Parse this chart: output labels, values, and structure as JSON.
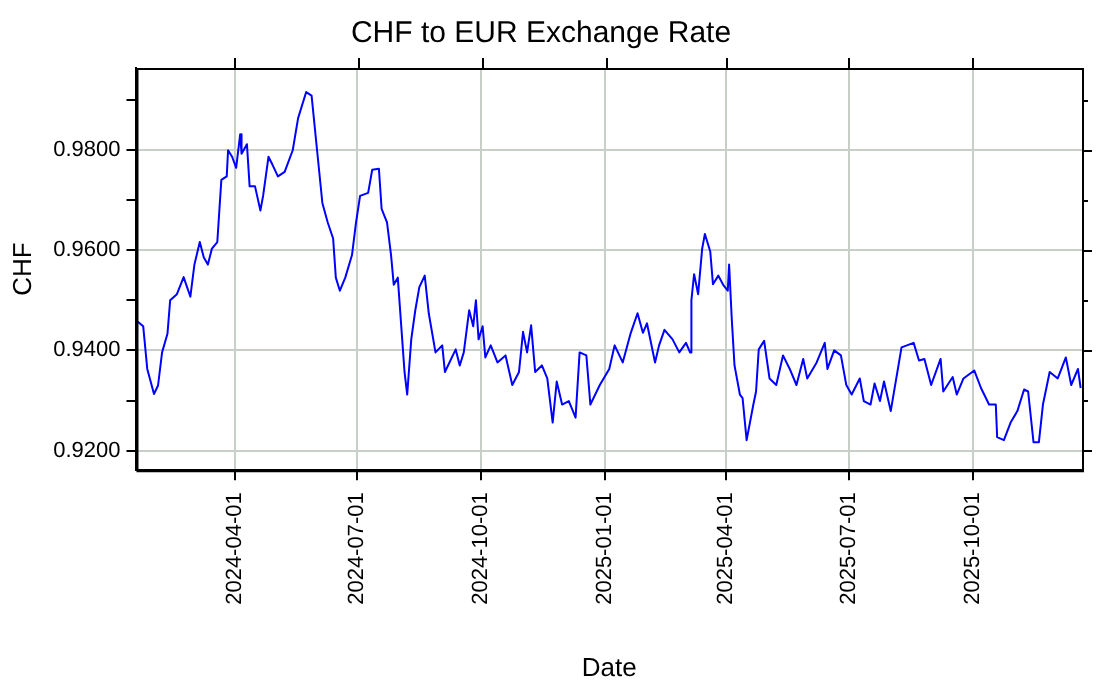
{
  "chart_data": {
    "type": "line",
    "title": "CHF to EUR Exchange Rate",
    "xlabel": "Date",
    "ylabel": "CHF",
    "x": [
      "2024-01-20",
      "2024-01-24",
      "2024-01-27",
      "2024-02-01",
      "2024-02-04",
      "2024-02-07",
      "2024-02-11",
      "2024-02-13",
      "2024-02-18",
      "2024-02-23",
      "2024-02-28",
      "2024-03-02",
      "2024-03-06",
      "2024-03-09",
      "2024-03-12",
      "2024-03-15",
      "2024-03-19",
      "2024-03-22",
      "2024-03-26",
      "2024-03-27",
      "2024-03-30",
      "2024-04-02",
      "2024-04-05",
      "2024-04-06",
      "2024-04-10",
      "2024-04-12",
      "2024-04-16",
      "2024-04-20",
      "2024-04-22",
      "2024-04-26",
      "2024-04-29",
      "2024-05-03",
      "2024-05-08",
      "2024-05-14",
      "2024-05-18",
      "2024-05-24",
      "2024-05-28",
      "2024-06-01",
      "2024-06-05",
      "2024-06-09",
      "2024-06-13",
      "2024-06-15",
      "2024-06-18",
      "2024-06-22",
      "2024-06-27",
      "2024-06-30",
      "2024-07-03",
      "2024-07-09",
      "2024-07-12",
      "2024-07-17",
      "2024-07-19",
      "2024-07-23",
      "2024-07-26",
      "2024-07-28",
      "2024-07-31",
      "2024-08-05",
      "2024-08-07",
      "2024-08-10",
      "2024-08-13",
      "2024-08-16",
      "2024-08-20",
      "2024-08-23",
      "2024-08-28",
      "2024-09-02",
      "2024-09-04",
      "2024-09-12",
      "2024-09-15",
      "2024-09-18",
      "2024-09-22",
      "2024-09-25",
      "2024-09-27",
      "2024-09-29",
      "2024-10-02",
      "2024-10-04",
      "2024-10-08",
      "2024-10-13",
      "2024-10-19",
      "2024-10-24",
      "2024-10-29",
      "2024-11-01",
      "2024-11-04",
      "2024-11-07",
      "2024-11-10",
      "2024-11-15",
      "2024-11-19",
      "2024-11-23",
      "2024-11-26",
      "2024-11-30",
      "2024-12-05",
      "2024-12-10",
      "2024-12-13",
      "2024-12-18",
      "2024-12-21",
      "2024-12-28",
      "2025-01-04",
      "2025-01-08",
      "2025-01-14",
      "2025-01-20",
      "2025-01-25",
      "2025-01-29",
      "2025-02-01",
      "2025-02-07",
      "2025-02-10",
      "2025-02-14",
      "2025-02-20",
      "2025-02-25",
      "2025-03-02",
      "2025-03-05",
      "2025-03-06",
      "2025-03-08",
      "2025-03-11",
      "2025-03-14",
      "2025-03-16",
      "2025-03-20",
      "2025-03-22",
      "2025-03-26",
      "2025-03-30",
      "2025-04-02",
      "2025-04-03",
      "2025-04-05",
      "2025-04-07",
      "2025-04-11",
      "2025-04-13",
      "2025-04-16",
      "2025-04-21",
      "2025-04-23",
      "2025-04-25",
      "2025-04-29",
      "2025-05-03",
      "2025-05-08",
      "2025-05-13",
      "2025-05-18",
      "2025-05-23",
      "2025-05-28",
      "2025-05-31",
      "2025-06-07",
      "2025-06-13",
      "2025-06-15",
      "2025-06-20",
      "2025-06-25",
      "2025-06-29",
      "2025-07-03",
      "2025-07-09",
      "2025-07-12",
      "2025-07-17",
      "2025-07-20",
      "2025-07-24",
      "2025-07-27",
      "2025-08-01",
      "2025-08-09",
      "2025-08-18",
      "2025-08-22",
      "2025-08-26",
      "2025-08-31",
      "2025-09-07",
      "2025-09-09",
      "2025-09-16",
      "2025-09-19",
      "2025-09-24",
      "2025-10-02",
      "2025-10-07",
      "2025-10-13",
      "2025-10-18",
      "2025-10-19",
      "2025-10-24",
      "2025-10-29",
      "2025-11-03",
      "2025-11-08",
      "2025-11-11",
      "2025-11-15",
      "2025-11-19",
      "2025-11-22",
      "2025-11-27",
      "2025-12-03",
      "2025-12-09",
      "2025-12-13",
      "2025-12-18",
      "2025-12-20"
    ],
    "series": [
      {
        "color": "#0000ff",
        "values": [
          0.9457,
          0.9448,
          0.9363,
          0.9313,
          0.933,
          0.9396,
          0.9433,
          0.95,
          0.9512,
          0.9546,
          0.9507,
          0.9571,
          0.9616,
          0.9585,
          0.9571,
          0.9603,
          0.9616,
          0.974,
          0.9747,
          0.9799,
          0.9786,
          0.9764,
          0.9831,
          0.9792,
          0.9811,
          0.9727,
          0.9727,
          0.9679,
          0.9708,
          0.9786,
          0.977,
          0.9747,
          0.9756,
          0.9799,
          0.9863,
          0.9915,
          0.9908,
          0.9801,
          0.9694,
          0.9655,
          0.9623,
          0.9545,
          0.9519,
          0.9545,
          0.959,
          0.9655,
          0.9708,
          0.9714,
          0.976,
          0.9762,
          0.9682,
          0.9655,
          0.959,
          0.9531,
          0.9545,
          0.9357,
          0.9312,
          0.9422,
          0.948,
          0.9526,
          0.9549,
          0.9474,
          0.9396,
          0.941,
          0.9357,
          0.9402,
          0.937,
          0.9396,
          0.948,
          0.9448,
          0.95,
          0.9422,
          0.9448,
          0.9386,
          0.941,
          0.9376,
          0.939,
          0.9331,
          0.9357,
          0.9437,
          0.9396,
          0.945,
          0.9357,
          0.937,
          0.9344,
          0.9256,
          0.9338,
          0.9292,
          0.9299,
          0.9266,
          0.9396,
          0.939,
          0.9292,
          0.9331,
          0.9363,
          0.941,
          0.9376,
          0.9435,
          0.9474,
          0.9435,
          0.9454,
          0.9376,
          0.941,
          0.9441,
          0.9422,
          0.9396,
          0.9415,
          0.9396,
          0.95,
          0.9552,
          0.9512,
          0.9603,
          0.9632,
          0.9597,
          0.9532,
          0.9549,
          0.9529,
          0.9519,
          0.9571,
          0.9461,
          0.937,
          0.9312,
          0.9305,
          0.9221,
          0.9292,
          0.9318,
          0.9402,
          0.9419,
          0.9344,
          0.9331,
          0.939,
          0.9363,
          0.9331,
          0.9383,
          0.9344,
          0.9376,
          0.9415,
          0.9363,
          0.94,
          0.939,
          0.9331,
          0.9312,
          0.9344,
          0.9299,
          0.9292,
          0.9334,
          0.9299,
          0.9338,
          0.9279,
          0.9406,
          0.9415,
          0.938,
          0.9383,
          0.9331,
          0.9383,
          0.9318,
          0.9347,
          0.9312,
          0.9344,
          0.936,
          0.9325,
          0.9292,
          0.9292,
          0.9227,
          0.9221,
          0.9256,
          0.9279,
          0.9322,
          0.9318,
          0.9217,
          0.9217,
          0.9292,
          0.9357,
          0.9344,
          0.9386,
          0.9331,
          0.9363,
          0.9325
        ]
      }
    ],
    "xlim": [
      "2024-01-19",
      "2025-12-21"
    ],
    "xticks": [
      "2024-04-01",
      "2024-07-01",
      "2024-10-01",
      "2025-01-01",
      "2025-04-01",
      "2025-07-01",
      "2025-10-01"
    ],
    "ylim": [
      0.9161,
      0.9963
    ],
    "yticks": [
      {
        "value": 0.92,
        "label": "0.9200"
      },
      {
        "value": 0.93,
        "label": null
      },
      {
        "value": 0.94,
        "label": "0.9400"
      },
      {
        "value": 0.95,
        "label": null
      },
      {
        "value": 0.96,
        "label": "0.9600"
      },
      {
        "value": 0.97,
        "label": null
      },
      {
        "value": 0.98,
        "label": "0.9800"
      },
      {
        "value": 0.99,
        "label": null
      }
    ],
    "grid": true,
    "legend": false,
    "marker": "none",
    "line_style": "solid"
  }
}
